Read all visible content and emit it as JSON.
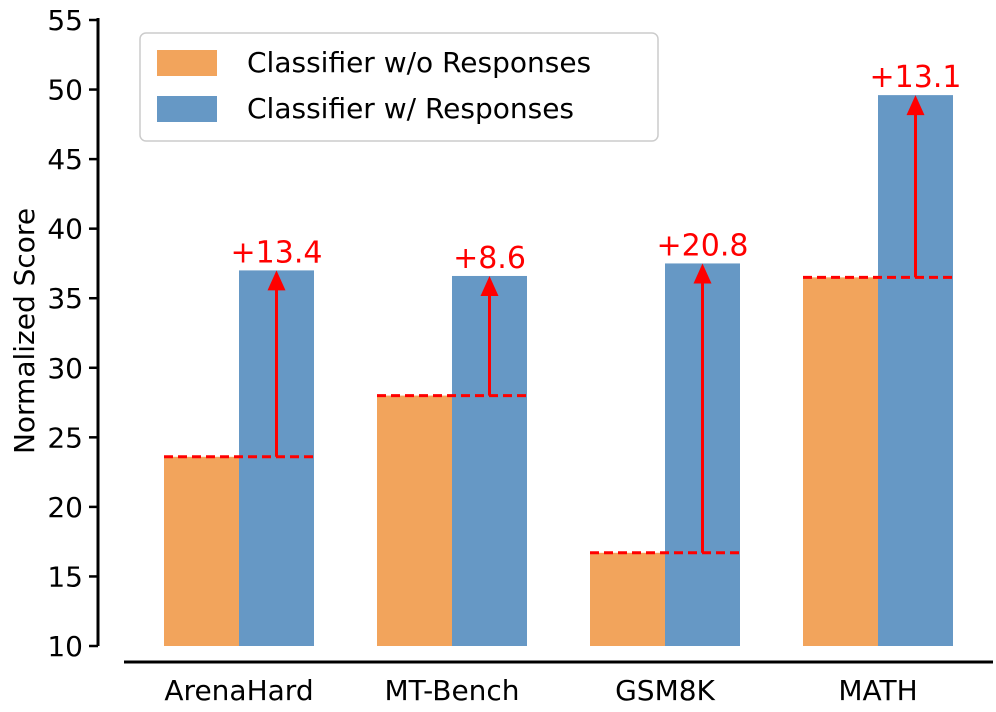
{
  "chart_data": {
    "type": "bar",
    "categories": [
      "ArenaHard",
      "MT-Bench",
      "GSM8K",
      "MATH"
    ],
    "series": [
      {
        "name": "Classifier w/o Responses",
        "values": [
          23.6,
          28.0,
          16.7,
          36.5
        ],
        "color": "#f2a45c"
      },
      {
        "name": "Classifier w/ Responses",
        "values": [
          37.0,
          36.6,
          37.5,
          49.6
        ],
        "color": "#6698c5"
      }
    ],
    "improvements": [
      "+13.4",
      "+8.6",
      "+20.8",
      "+13.1"
    ],
    "annotation_color": "#ff0000",
    "ylabel": "Normalized Score",
    "xlabel": "",
    "ylim": [
      10,
      55
    ],
    "yticks": [
      10,
      15,
      20,
      25,
      30,
      35,
      40,
      45,
      50,
      55
    ],
    "legend_position": "top-left",
    "grid": false
  }
}
